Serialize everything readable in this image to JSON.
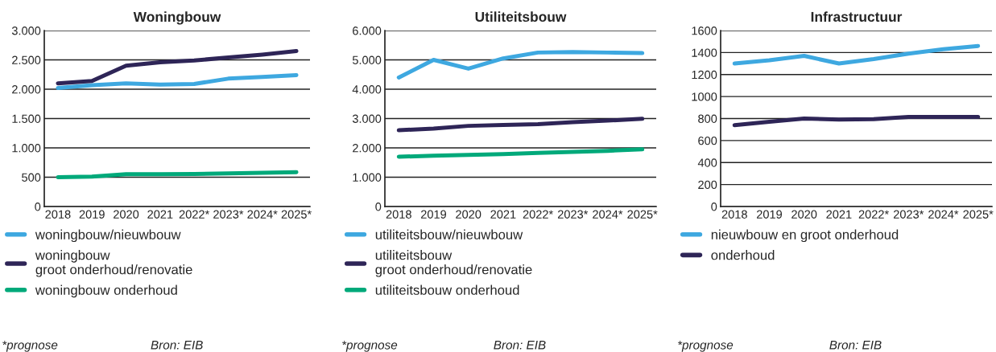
{
  "chart_data": [
    {
      "type": "line",
      "title": "Woningbouw",
      "categories": [
        "2018",
        "2019",
        "2020",
        "2021",
        "2022*",
        "2023*",
        "2024*",
        "2025*"
      ],
      "series": [
        {
          "name": "woningbouw/nieuwbouw",
          "color": "#3ea8e0",
          "values": [
            2020,
            2070,
            2100,
            2080,
            2090,
            2180,
            2210,
            2240
          ]
        },
        {
          "name": "woningbouw\ngroot onderhoud/renovatie",
          "color": "#2e2557",
          "values": [
            2100,
            2140,
            2400,
            2460,
            2490,
            2540,
            2590,
            2650
          ]
        },
        {
          "name": "woningbouw onderhoud",
          "color": "#00a97a",
          "values": [
            500,
            510,
            550,
            550,
            555,
            565,
            575,
            585
          ]
        }
      ],
      "ylim": [
        0,
        3000
      ],
      "yticks": [
        0,
        {
          "value": 500,
          "label": "500"
        },
        {
          "value": 1000,
          "label": "1.000"
        },
        {
          "value": 1500,
          "label": "1.500"
        },
        {
          "value": 2000,
          "label": "2.000"
        },
        {
          "value": 2500,
          "label": "2.500"
        },
        {
          "value": 3000,
          "label": "3.000"
        }
      ],
      "grid": "y",
      "legend": "bottom",
      "marker": "none",
      "line_style": "solid",
      "annotations": [
        "*prognose",
        "Bron: EIB"
      ]
    },
    {
      "type": "line",
      "title": "Utiliteitsbouw",
      "categories": [
        "2018",
        "2019",
        "2020",
        "2021",
        "2022*",
        "2023*",
        "2024*",
        "2025*"
      ],
      "series": [
        {
          "name": "utiliteitsbouw/nieuwbouw",
          "color": "#3ea8e0",
          "values": [
            4400,
            5000,
            4700,
            5050,
            5250,
            5270,
            5250,
            5230
          ]
        },
        {
          "name": "utiliteitsbouw\ngroot onderhoud/renovatie",
          "color": "#2e2557",
          "values": [
            2600,
            2660,
            2750,
            2780,
            2810,
            2880,
            2930,
            2990
          ]
        },
        {
          "name": "utiliteitsbouw onderhoud",
          "color": "#00a97a",
          "values": [
            1700,
            1730,
            1760,
            1790,
            1830,
            1860,
            1900,
            1950
          ]
        }
      ],
      "ylim": [
        0,
        6000
      ],
      "yticks": [
        0,
        {
          "value": 1000,
          "label": "1.000"
        },
        {
          "value": 2000,
          "label": "2.000"
        },
        {
          "value": 3000,
          "label": "3.000"
        },
        {
          "value": 4000,
          "label": "4.000"
        },
        {
          "value": 5000,
          "label": "5.000"
        },
        {
          "value": 6000,
          "label": "6.000"
        }
      ],
      "grid": "y",
      "legend": "bottom",
      "marker": "none",
      "line_style": "solid",
      "annotations": [
        "*prognose",
        "Bron: EIB"
      ]
    },
    {
      "type": "line",
      "title": "Infrastructuur",
      "categories": [
        "2018",
        "2019",
        "2020",
        "2021",
        "2022*",
        "2023*",
        "2024*",
        "2025*"
      ],
      "series": [
        {
          "name": "nieuwbouw en groot onderhoud",
          "color": "#3ea8e0",
          "values": [
            1300,
            1330,
            1370,
            1300,
            1340,
            1390,
            1430,
            1460
          ]
        },
        {
          "name": "onderhoud",
          "color": "#2e2557",
          "values": [
            740,
            770,
            800,
            790,
            795,
            815,
            815,
            815
          ]
        }
      ],
      "ylim": [
        0,
        1600
      ],
      "yticks": [
        0,
        200,
        400,
        600,
        800,
        1000,
        1200,
        1400,
        1600
      ],
      "grid": "y",
      "legend": "bottom",
      "marker": "none",
      "line_style": "solid",
      "annotations": [
        "*prognose",
        "Bron: EIB"
      ]
    }
  ]
}
